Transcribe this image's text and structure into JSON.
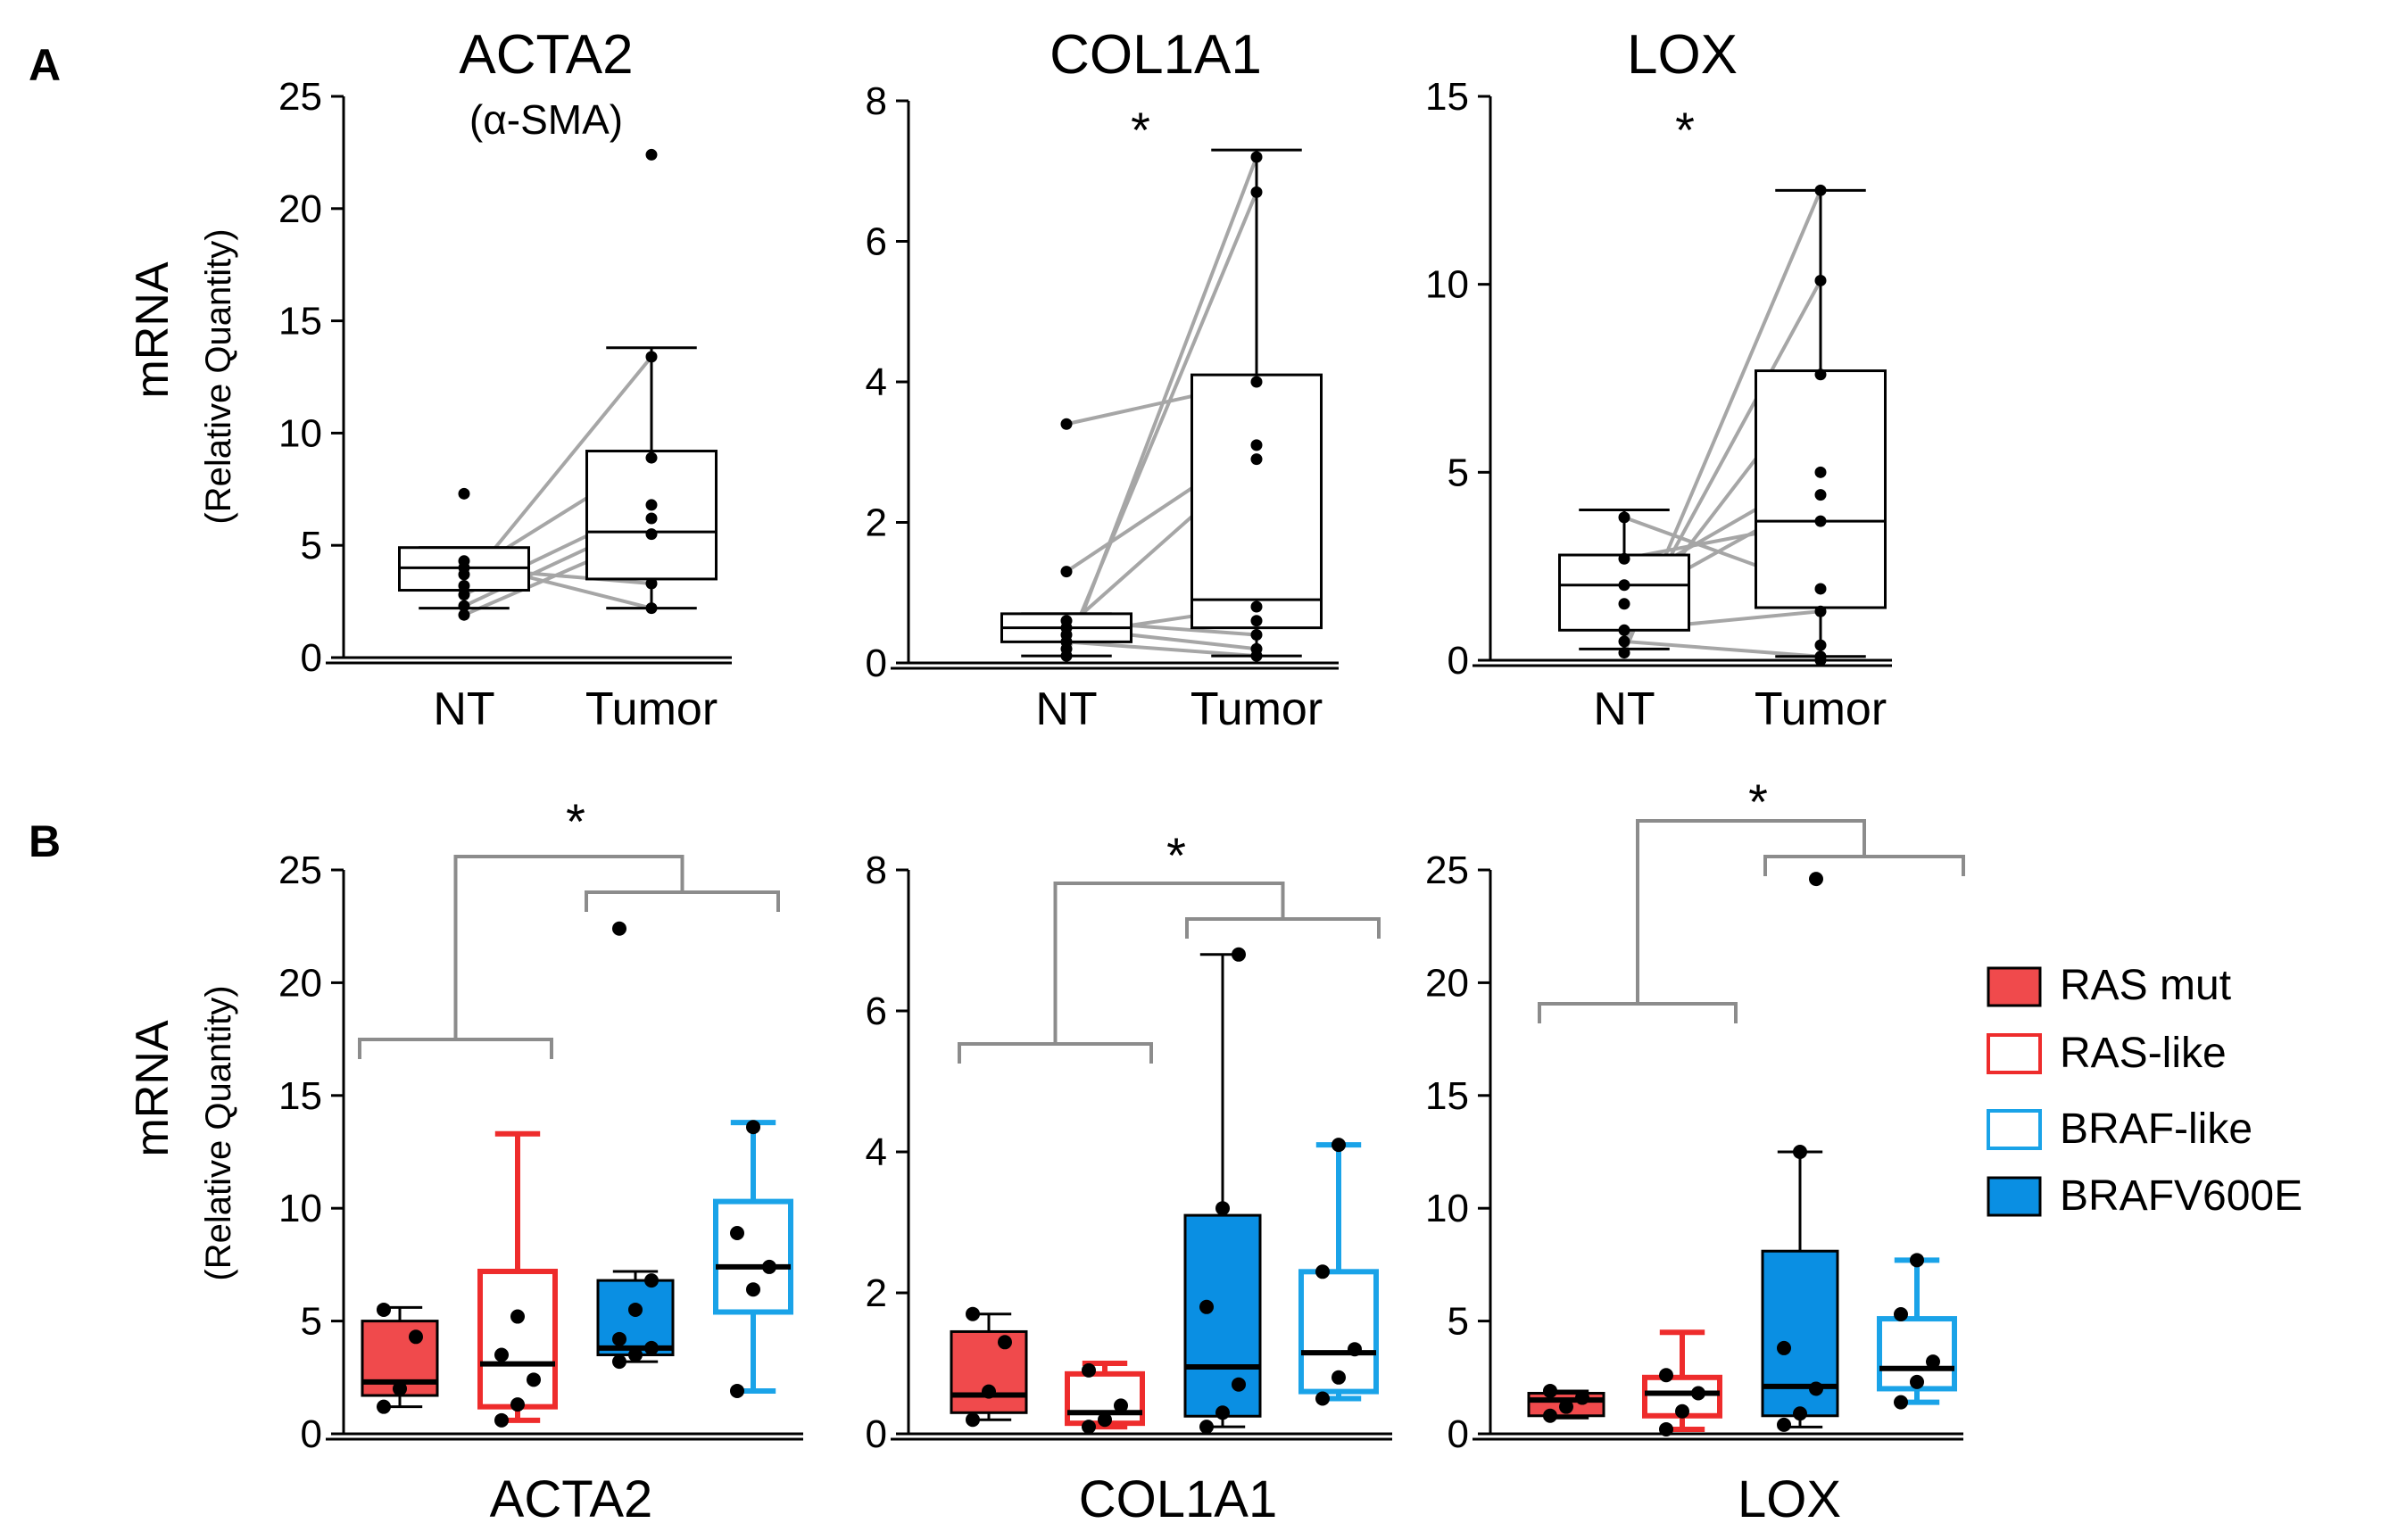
{
  "panel_labels": [
    "A",
    "B"
  ],
  "colors": {
    "RAS mut": "#f04a4c",
    "RAS-like": "#ee2c2c",
    "BRAF-like": "#1aa3e8",
    "BRAFV600E": "#0a8fe3",
    "paired_line": "#a6a6a6",
    "bracket": "#8c8c8c"
  },
  "shared": {
    "ylabel_main": "mRNA",
    "ylabel_sub": "(Relative Quantity)"
  },
  "legend": [
    "RAS mut",
    "RAS-like",
    "BRAF-like",
    "BRAFV600E"
  ],
  "chart_data": [
    {
      "type": "box",
      "panel": "A",
      "title": "ACTA2",
      "subtitle": "(α-SMA)",
      "significance": "",
      "categories": [
        "NT",
        "Tumor"
      ],
      "ylim": [
        0,
        25
      ],
      "yticks": [
        0,
        5,
        10,
        15,
        20,
        25
      ],
      "boxes": [
        {
          "category": "NT",
          "min": 2.2,
          "q1": 3.0,
          "median": 4.0,
          "q3": 4.9,
          "max": 4.9
        },
        {
          "category": "Tumor",
          "min": 2.2,
          "q1": 3.5,
          "median": 5.6,
          "q3": 9.2,
          "max": 13.8
        }
      ],
      "points": {
        "NT": [
          1.9,
          2.3,
          2.8,
          3.2,
          3.7,
          4.0,
          4.3,
          7.3
        ],
        "Tumor": [
          2.2,
          3.3,
          5.5,
          6.2,
          6.8,
          8.9,
          13.4,
          22.4
        ]
      },
      "pairs": [
        [
          3.2,
          13.4
        ],
        [
          3.7,
          8.9
        ],
        [
          4.3,
          2.2
        ],
        [
          2.8,
          6.8
        ],
        [
          2.3,
          6.2
        ],
        [
          1.9,
          5.5
        ],
        [
          4.0,
          3.3
        ]
      ]
    },
    {
      "type": "box",
      "panel": "A",
      "title": "COL1A1",
      "subtitle": "",
      "significance": "*",
      "categories": [
        "NT",
        "Tumor"
      ],
      "ylim": [
        0,
        8
      ],
      "yticks": [
        0,
        2,
        4,
        6,
        8
      ],
      "boxes": [
        {
          "category": "NT",
          "min": 0.1,
          "q1": 0.3,
          "median": 0.5,
          "q3": 0.7,
          "max": 0.7
        },
        {
          "category": "Tumor",
          "min": 0.1,
          "q1": 0.5,
          "median": 0.9,
          "q3": 4.1,
          "max": 7.3
        }
      ],
      "points": {
        "NT": [
          0.1,
          0.2,
          0.3,
          0.4,
          0.5,
          0.6,
          1.3,
          3.4
        ],
        "Tumor": [
          0.1,
          0.2,
          0.4,
          0.6,
          0.8,
          2.9,
          3.1,
          4.0,
          6.7,
          7.2
        ]
      },
      "pairs": [
        [
          0.1,
          7.2
        ],
        [
          0.2,
          6.7
        ],
        [
          3.4,
          4.0
        ],
        [
          1.3,
          3.1
        ],
        [
          0.5,
          2.9
        ],
        [
          0.4,
          0.8
        ],
        [
          0.6,
          0.4
        ],
        [
          0.3,
          0.1
        ],
        [
          0.5,
          0.2
        ]
      ]
    },
    {
      "type": "box",
      "panel": "A",
      "title": "LOX",
      "subtitle": "",
      "significance": "*",
      "categories": [
        "NT",
        "Tumor"
      ],
      "ylim": [
        0,
        15
      ],
      "yticks": [
        0,
        5,
        10,
        15
      ],
      "boxes": [
        {
          "category": "NT",
          "min": 0.3,
          "q1": 0.8,
          "median": 2.0,
          "q3": 2.8,
          "max": 4.0
        },
        {
          "category": "Tumor",
          "min": 0.1,
          "q1": 1.4,
          "median": 3.7,
          "q3": 7.7,
          "max": 12.5
        }
      ],
      "points": {
        "NT": [
          0.2,
          0.5,
          0.8,
          1.5,
          2.0,
          2.7,
          3.8
        ],
        "Tumor": [
          0.0,
          0.1,
          0.4,
          1.3,
          1.9,
          3.7,
          4.4,
          5.0,
          7.6,
          10.1,
          12.5
        ]
      },
      "pairs": [
        [
          0.2,
          12.5
        ],
        [
          0.5,
          10.1
        ],
        [
          0.8,
          7.6
        ],
        [
          2.0,
          5.0
        ],
        [
          1.5,
          4.4
        ],
        [
          2.7,
          3.7
        ],
        [
          3.8,
          1.9
        ],
        [
          0.8,
          1.3
        ],
        [
          0.5,
          0.1
        ]
      ]
    },
    {
      "type": "box",
      "panel": "B",
      "xlabel": "ACTA2",
      "significance": "*",
      "categories": [
        "RAS mut",
        "RAS-like",
        "BRAFV600E",
        "BRAF-like"
      ],
      "ylim": [
        0,
        25
      ],
      "yticks": [
        0,
        5,
        10,
        15,
        20,
        25
      ],
      "boxes": [
        {
          "category": "RAS mut",
          "min": 1.2,
          "q1": 1.7,
          "median": 2.3,
          "q3": 5.0,
          "max": 5.6
        },
        {
          "category": "RAS-like",
          "min": 0.6,
          "q1": 1.2,
          "median": 3.1,
          "q3": 7.2,
          "max": 13.3
        },
        {
          "category": "BRAFV600E",
          "min": 3.2,
          "q1": 3.5,
          "median": 3.8,
          "q3": 6.8,
          "max": 7.2
        },
        {
          "category": "BRAF-like",
          "min": 1.9,
          "q1": 5.4,
          "median": 7.4,
          "q3": 10.3,
          "max": 13.8
        }
      ],
      "points": {
        "RAS mut": [
          1.2,
          2.0,
          4.3,
          5.5
        ],
        "RAS-like": [
          0.6,
          1.3,
          2.4,
          3.5,
          5.2
        ],
        "BRAFV600E": [
          3.2,
          3.5,
          3.8,
          4.2,
          5.5,
          6.8,
          22.4
        ],
        "BRAF-like": [
          1.9,
          6.4,
          7.4,
          8.9,
          13.6
        ]
      }
    },
    {
      "type": "box",
      "panel": "B",
      "xlabel": "COL1A1",
      "significance": "*",
      "categories": [
        "RAS mut",
        "RAS-like",
        "BRAFV600E",
        "BRAF-like"
      ],
      "ylim": [
        0,
        8
      ],
      "yticks": [
        0,
        2,
        4,
        6,
        8
      ],
      "boxes": [
        {
          "category": "RAS mut",
          "min": 0.2,
          "q1": 0.3,
          "median": 0.55,
          "q3": 1.45,
          "max": 1.7
        },
        {
          "category": "RAS-like",
          "min": 0.1,
          "q1": 0.15,
          "median": 0.3,
          "q3": 0.85,
          "max": 1.0
        },
        {
          "category": "BRAFV600E",
          "min": 0.1,
          "q1": 0.25,
          "median": 0.95,
          "q3": 3.1,
          "max": 6.8
        },
        {
          "category": "BRAF-like",
          "min": 0.5,
          "q1": 0.6,
          "median": 1.15,
          "q3": 2.3,
          "max": 4.1
        }
      ],
      "points": {
        "RAS mut": [
          0.2,
          0.6,
          1.3,
          1.7
        ],
        "RAS-like": [
          0.1,
          0.2,
          0.4,
          0.9
        ],
        "BRAFV600E": [
          0.1,
          0.3,
          0.7,
          1.8,
          3.2,
          6.8
        ],
        "BRAF-like": [
          0.5,
          0.8,
          1.2,
          2.3,
          4.1
        ]
      }
    },
    {
      "type": "box",
      "panel": "B",
      "xlabel": "LOX",
      "significance": "*",
      "categories": [
        "RAS mut",
        "RAS-like",
        "BRAFV600E",
        "BRAF-like"
      ],
      "ylim": [
        0,
        25
      ],
      "yticks": [
        0,
        5,
        10,
        15,
        20,
        25
      ],
      "boxes": [
        {
          "category": "RAS mut",
          "min": 0.7,
          "q1": 0.8,
          "median": 1.5,
          "q3": 1.8,
          "max": 1.9
        },
        {
          "category": "RAS-like",
          "min": 0.2,
          "q1": 0.8,
          "median": 1.8,
          "q3": 2.5,
          "max": 4.5
        },
        {
          "category": "BRAFV600E",
          "min": 0.3,
          "q1": 0.8,
          "median": 2.1,
          "q3": 8.1,
          "max": 12.5
        },
        {
          "category": "BRAF-like",
          "min": 1.4,
          "q1": 2.0,
          "median": 2.9,
          "q3": 5.1,
          "max": 7.7
        }
      ],
      "points": {
        "RAS mut": [
          0.8,
          1.2,
          1.6,
          1.9
        ],
        "RAS-like": [
          0.2,
          1.0,
          1.8,
          2.6
        ],
        "BRAFV600E": [
          0.4,
          0.9,
          2.0,
          3.8,
          12.5,
          24.6
        ],
        "BRAF-like": [
          1.4,
          2.3,
          3.2,
          5.3,
          7.7
        ]
      }
    }
  ]
}
